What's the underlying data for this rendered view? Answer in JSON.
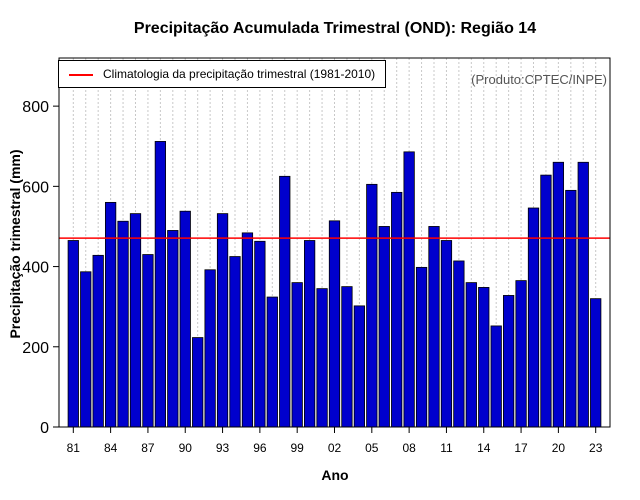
{
  "chart_data": {
    "type": "bar",
    "title": "Precipitação Acumulada Trimestral (OND): Região 14",
    "xlabel": "Ano",
    "ylabel": "Precipitação trimestral (mm)",
    "ylim": [
      0,
      920
    ],
    "yticks": [
      0,
      200,
      400,
      600,
      800
    ],
    "xtick_labels": [
      "81",
      "84",
      "87",
      "90",
      "93",
      "96",
      "99",
      "02",
      "05",
      "08",
      "11",
      "14",
      "17",
      "20",
      "23"
    ],
    "categories": [
      "81",
      "82",
      "83",
      "84",
      "85",
      "86",
      "87",
      "88",
      "89",
      "90",
      "91",
      "92",
      "93",
      "94",
      "95",
      "96",
      "97",
      "98",
      "99",
      "00",
      "01",
      "02",
      "03",
      "04",
      "05",
      "06",
      "07",
      "08",
      "09",
      "10",
      "11",
      "12",
      "13",
      "14",
      "15",
      "16",
      "17",
      "18",
      "19",
      "20",
      "21",
      "22",
      "23"
    ],
    "values": [
      465,
      387,
      428,
      560,
      513,
      532,
      430,
      712,
      490,
      538,
      223,
      392,
      532,
      425,
      484,
      463,
      324,
      625,
      360,
      465,
      345,
      514,
      350,
      302,
      605,
      500,
      585,
      686,
      398,
      500,
      465,
      414,
      360,
      348,
      252,
      328,
      365,
      546,
      628,
      660,
      590,
      660,
      320
    ],
    "climatology": 471,
    "legend": "Climatologia da precipitação trimestral (1981-2010)",
    "credit": "(Produto:CPTEC/INPE)",
    "bar_color": "#0000cd",
    "line_color": "#ff0000",
    "grid": true
  }
}
